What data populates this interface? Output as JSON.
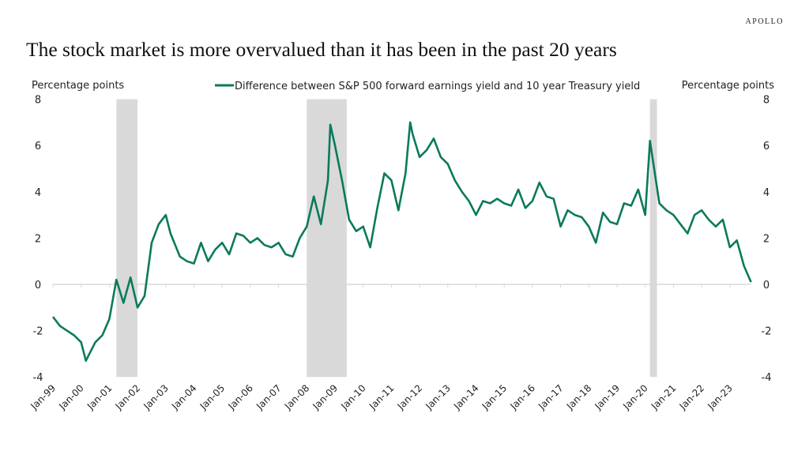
{
  "brand": "APOLLO",
  "title": "The stock market is more overvalued than it has been in the past 20 years",
  "chart_data": {
    "type": "line",
    "ylabel_left": "Percentage points",
    "ylabel_right": "Percentage points",
    "ylim": [
      -4,
      8
    ],
    "yticks": [
      -4,
      -2,
      0,
      2,
      4,
      6,
      8
    ],
    "xlim": [
      "1999-01",
      "2023-10"
    ],
    "xtick_labels": [
      "Jan-99",
      "Jan-00",
      "Jan-01",
      "Jan-02",
      "Jan-03",
      "Jan-04",
      "Jan-05",
      "Jan-06",
      "Jan-07",
      "Jan-08",
      "Jan-09",
      "Jan-10",
      "Jan-11",
      "Jan-12",
      "Jan-13",
      "Jan-14",
      "Jan-15",
      "Jan-16",
      "Jan-17",
      "Jan-18",
      "Jan-19",
      "Jan-20",
      "Jan-21",
      "Jan-22",
      "Jan-23"
    ],
    "legend_position": "top-center",
    "grid": false,
    "line_color": "#0a7a5c",
    "recession_color": "#d9d9d9",
    "recessions": [
      [
        "2001-04",
        "2002-01"
      ],
      [
        "2008-01",
        "2009-06"
      ],
      [
        "2020-03",
        "2020-06"
      ]
    ],
    "series": [
      {
        "name": "Difference between S&P 500 forward earnings yield and 10 year Treasury yield",
        "x": [
          "1999-01",
          "1999-04",
          "1999-07",
          "1999-10",
          "2000-01",
          "2000-03",
          "2000-07",
          "2000-10",
          "2001-01",
          "2001-04",
          "2001-07",
          "2001-10",
          "2002-01",
          "2002-04",
          "2002-07",
          "2002-10",
          "2003-01",
          "2003-03",
          "2003-07",
          "2003-10",
          "2004-01",
          "2004-04",
          "2004-07",
          "2004-10",
          "2005-01",
          "2005-04",
          "2005-07",
          "2005-10",
          "2006-01",
          "2006-04",
          "2006-07",
          "2006-10",
          "2007-01",
          "2007-04",
          "2007-07",
          "2007-10",
          "2008-01",
          "2008-04",
          "2008-07",
          "2008-10",
          "2008-11",
          "2009-01",
          "2009-04",
          "2009-07",
          "2009-10",
          "2010-01",
          "2010-04",
          "2010-07",
          "2010-10",
          "2011-01",
          "2011-04",
          "2011-07",
          "2011-09",
          "2011-10",
          "2012-01",
          "2012-04",
          "2012-07",
          "2012-10",
          "2013-01",
          "2013-04",
          "2013-07",
          "2013-10",
          "2014-01",
          "2014-04",
          "2014-07",
          "2014-10",
          "2015-01",
          "2015-04",
          "2015-07",
          "2015-10",
          "2016-01",
          "2016-04",
          "2016-07",
          "2016-10",
          "2017-01",
          "2017-04",
          "2017-07",
          "2017-10",
          "2018-01",
          "2018-04",
          "2018-07",
          "2018-10",
          "2019-01",
          "2019-04",
          "2019-07",
          "2019-10",
          "2020-01",
          "2020-03",
          "2020-07",
          "2020-10",
          "2021-01",
          "2021-04",
          "2021-07",
          "2021-10",
          "2022-01",
          "2022-04",
          "2022-07",
          "2022-10",
          "2023-01",
          "2023-04",
          "2023-07",
          "2023-10"
        ],
        "values": [
          -1.4,
          -1.8,
          -2.0,
          -2.2,
          -2.5,
          -3.3,
          -2.5,
          -2.2,
          -1.5,
          0.2,
          -0.8,
          0.3,
          -1.0,
          -0.5,
          1.8,
          2.6,
          3.0,
          2.2,
          1.2,
          1.0,
          0.9,
          1.8,
          1.0,
          1.5,
          1.8,
          1.3,
          2.2,
          2.1,
          1.8,
          2.0,
          1.7,
          1.6,
          1.8,
          1.3,
          1.2,
          2.0,
          2.5,
          3.8,
          2.6,
          4.5,
          6.9,
          6.0,
          4.5,
          2.8,
          2.3,
          2.5,
          1.6,
          3.3,
          4.8,
          4.5,
          3.2,
          4.8,
          7.0,
          6.5,
          5.5,
          5.8,
          6.3,
          5.5,
          5.2,
          4.5,
          4.0,
          3.6,
          3.0,
          3.6,
          3.5,
          3.7,
          3.5,
          3.4,
          4.1,
          3.3,
          3.6,
          4.4,
          3.8,
          3.7,
          2.5,
          3.2,
          3.0,
          2.9,
          2.5,
          1.8,
          3.1,
          2.7,
          2.6,
          3.5,
          3.4,
          4.1,
          3.0,
          6.2,
          3.5,
          3.2,
          3.0,
          2.6,
          2.2,
          3.0,
          3.2,
          2.8,
          2.5,
          2.8,
          1.6,
          1.9,
          0.8,
          0.1
        ]
      }
    ]
  }
}
